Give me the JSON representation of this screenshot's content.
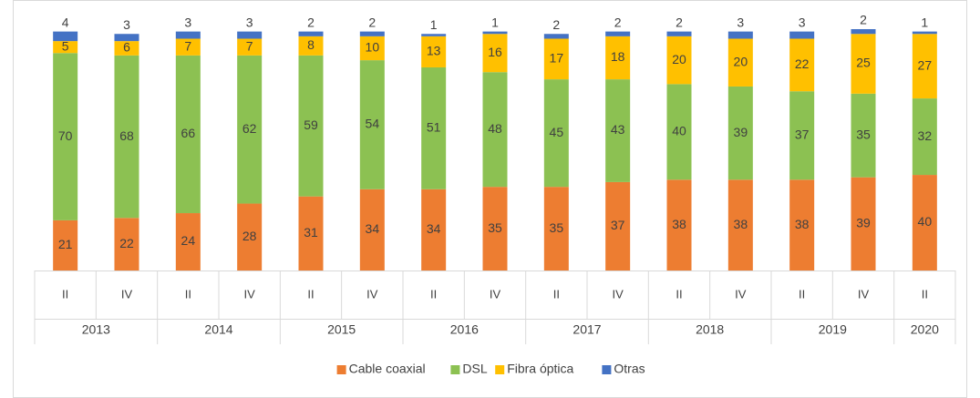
{
  "chart_data": {
    "type": "stacked_bar",
    "groups": [
      {
        "name": "2013",
        "categories": [
          "II",
          "IV"
        ]
      },
      {
        "name": "2014",
        "categories": [
          "II",
          "IV"
        ]
      },
      {
        "name": "2015",
        "categories": [
          "II",
          "IV"
        ]
      },
      {
        "name": "2016",
        "categories": [
          "II",
          "IV"
        ]
      },
      {
        "name": "2017",
        "categories": [
          "II",
          "IV"
        ]
      },
      {
        "name": "2018",
        "categories": [
          "II",
          "IV"
        ]
      },
      {
        "name": "2019",
        "categories": [
          "II",
          "IV"
        ]
      },
      {
        "name": "2020",
        "categories": [
          "II"
        ]
      }
    ],
    "series": [
      {
        "name": "Cable coaxial",
        "color": "#ed7d31",
        "values": [
          21,
          22,
          24,
          28,
          31,
          34,
          34,
          35,
          35,
          37,
          38,
          38,
          38,
          39,
          40
        ]
      },
      {
        "name": "DSL",
        "color": "#8cc152",
        "values": [
          70,
          68,
          66,
          62,
          59,
          54,
          51,
          48,
          45,
          43,
          40,
          39,
          37,
          35,
          32
        ]
      },
      {
        "name": "Fibra óptica",
        "color": "#ffc000",
        "values": [
          5,
          6,
          7,
          7,
          8,
          10,
          13,
          16,
          17,
          18,
          20,
          20,
          22,
          25,
          27
        ]
      },
      {
        "name": "Otras",
        "color": "#4472c4",
        "values": [
          4,
          3,
          3,
          3,
          2,
          2,
          1,
          1,
          2,
          2,
          2,
          3,
          3,
          2,
          1
        ]
      }
    ],
    "legend": "bottom"
  }
}
